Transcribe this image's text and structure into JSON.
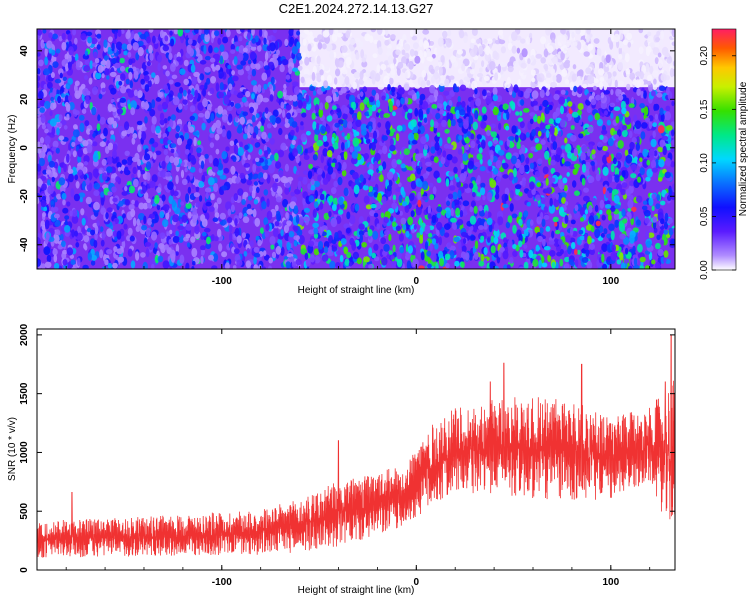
{
  "title": "C2E1.2024.272.14.13.G27",
  "chart_data": [
    {
      "type": "heatmap",
      "title": "",
      "xlabel": "Height of straight line (km)",
      "ylabel": "Frequency (Hz)",
      "xlim": [
        -195,
        133
      ],
      "ylim": [
        -50,
        49
      ],
      "xticks": [
        -100,
        0,
        100
      ],
      "yticks": [
        -40,
        -20,
        0,
        20,
        40
      ],
      "colorbar": {
        "label": "Normalized spectral amplitude",
        "range": [
          0,
          0.225
        ],
        "ticks": [
          "0.00",
          "0.05",
          "0.10",
          "0.15",
          "0.20"
        ],
        "colormap": "rainbow"
      },
      "description_regions": [
        {
          "x": [
            -195,
            -60
          ],
          "y": [
            -50,
            49
          ],
          "level": 0.05
        },
        {
          "x": [
            -60,
            133
          ],
          "y": [
            -50,
            20
          ],
          "level": 0.085
        },
        {
          "x": [
            -60,
            133
          ],
          "y": [
            25,
            49
          ],
          "level": 0.005
        }
      ]
    },
    {
      "type": "line",
      "title": "",
      "xlabel": "Height of straight line (km)",
      "ylabel": "SNR (10 * v/v)",
      "xlim": [
        -195,
        133
      ],
      "ylim": [
        0,
        2050
      ],
      "xticks": [
        -100,
        0,
        100
      ],
      "yticks": [
        0,
        500,
        1000,
        1500,
        2000
      ],
      "color": "#f03232",
      "envelope": {
        "x": [
          -195,
          -160,
          -120,
          -80,
          -60,
          -40,
          -20,
          -5,
          5,
          20,
          40,
          60,
          80,
          100,
          120,
          133
        ],
        "low": [
          100,
          110,
          120,
          130,
          150,
          200,
          280,
          380,
          500,
          650,
          650,
          600,
          580,
          600,
          750,
          200
        ],
        "high": [
          420,
          440,
          470,
          520,
          600,
          760,
          820,
          920,
          1200,
          1380,
          1450,
          1500,
          1450,
          1300,
          1380,
          1650
        ]
      },
      "spikes": [
        {
          "x": -177,
          "y": 660
        },
        {
          "x": -40,
          "y": 1100
        },
        {
          "x": 38,
          "y": 1600
        },
        {
          "x": 45,
          "y": 1760
        },
        {
          "x": 85,
          "y": 1750
        },
        {
          "x": 128,
          "y": 1600
        },
        {
          "x": 131,
          "y": 2000
        }
      ]
    }
  ]
}
